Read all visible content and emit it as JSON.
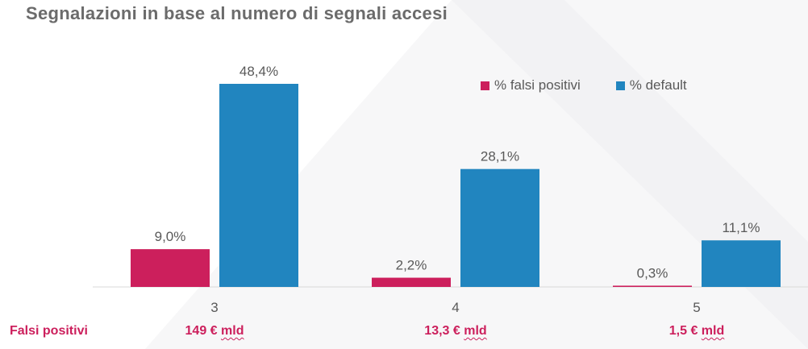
{
  "title": "Segnalazioni in base al numero di segnali accesi",
  "legend": [
    {
      "label": "% falsi positivi",
      "color": "#cc1f5c"
    },
    {
      "label": "% default",
      "color": "#2185bf"
    }
  ],
  "footer": {
    "label": "Falsi positivi",
    "values": [
      {
        "amount": "149 €",
        "unit": "mld"
      },
      {
        "amount": "13,3 €",
        "unit": "mld"
      },
      {
        "amount": "1,5 €",
        "unit": "mld"
      }
    ]
  },
  "chart_data": {
    "type": "bar",
    "title": "Segnalazioni in base al numero di segnali accesi",
    "xlabel": "",
    "ylabel": "",
    "categories": [
      "3",
      "4",
      "5"
    ],
    "series": [
      {
        "name": "% falsi positivi",
        "values": [
          9.0,
          2.2,
          0.3
        ],
        "labels": [
          "9,0%",
          "2,2%",
          "0,3%"
        ],
        "color": "#cc1f5c"
      },
      {
        "name": "% default",
        "values": [
          48.4,
          28.1,
          11.1
        ],
        "labels": [
          "48,4%",
          "28,1%",
          "11,1%"
        ],
        "color": "#2185bf"
      }
    ],
    "ylim": [
      0,
      48.4
    ],
    "grid": false,
    "legend_position": "top-right"
  }
}
